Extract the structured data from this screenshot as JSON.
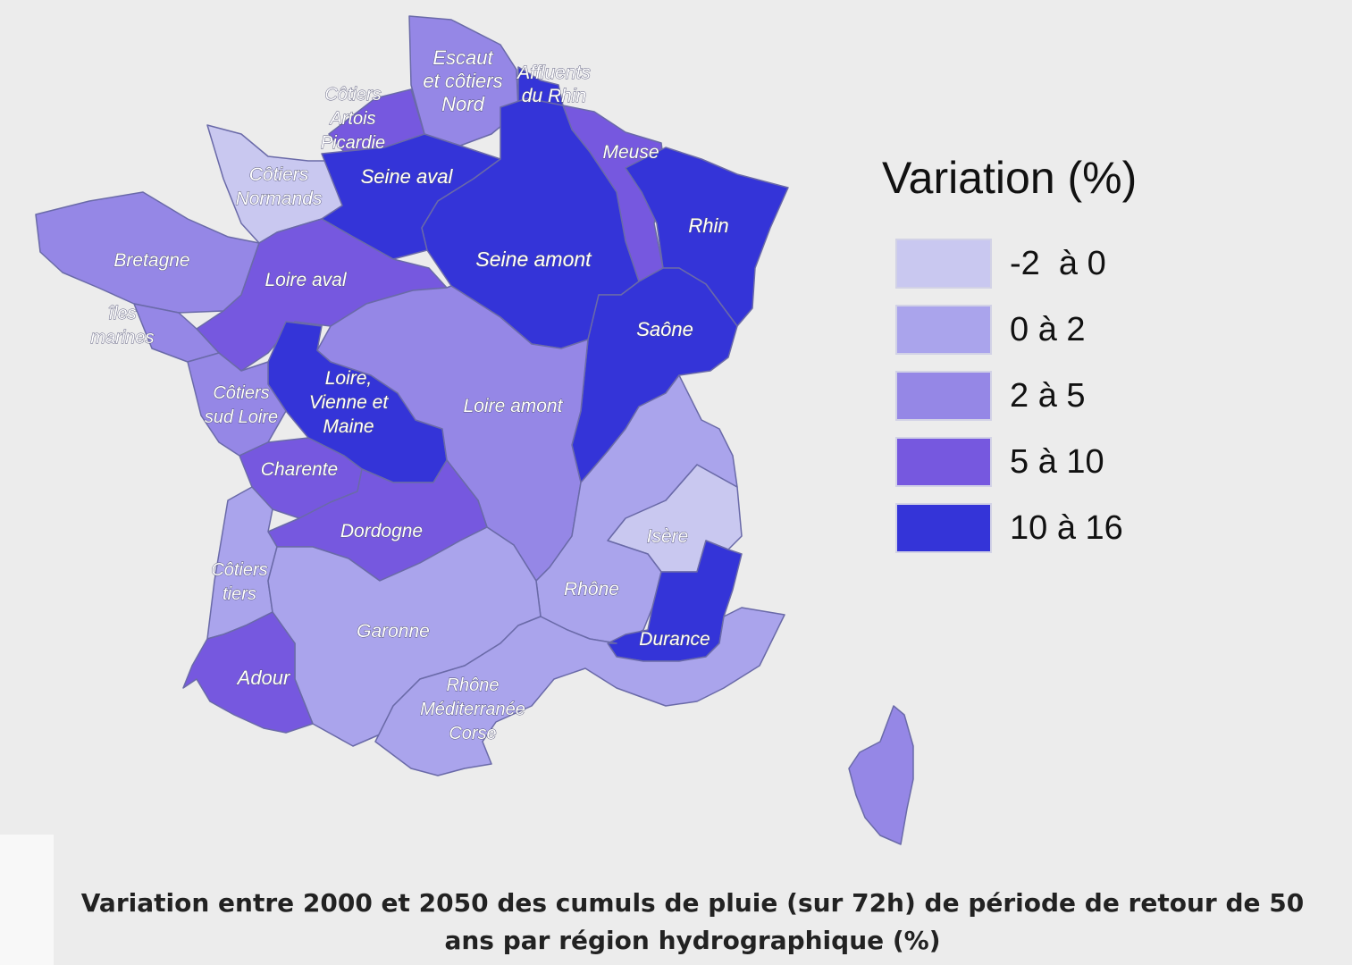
{
  "legend": {
    "title": "Variation (%)",
    "classes": [
      {
        "label": "-2  à 0",
        "color": "#c9c8f0"
      },
      {
        "label": "0 à 2",
        "color": "#aaa4ec"
      },
      {
        "label": "2 à 5",
        "color": "#9587e6"
      },
      {
        "label": "5 à 10",
        "color": "#7658df"
      },
      {
        "label": "10 à 16",
        "color": "#3434d8"
      }
    ]
  },
  "regions": [
    {
      "name": "Escaut et côtiers Nord",
      "lines": [
        "Escaut",
        "et côtiers",
        "Nord"
      ],
      "class": 2
    },
    {
      "name": "Affluents du Rhin",
      "lines": [
        "Affluents",
        "du Rhin"
      ],
      "class": 4
    },
    {
      "name": "Côtiers Artois Picardie",
      "lines": [
        "Côtiers",
        "Artois",
        "Picardie"
      ],
      "class": 3
    },
    {
      "name": "Côtiers Normands",
      "lines": [
        "Côtiers",
        "Normands"
      ],
      "class": 0
    },
    {
      "name": "Seine aval",
      "lines": [
        "Seine aval"
      ],
      "class": 4
    },
    {
      "name": "Meuse",
      "lines": [
        "Meuse"
      ],
      "class": 3
    },
    {
      "name": "Rhin",
      "lines": [
        "Rhin"
      ],
      "class": 4
    },
    {
      "name": "Seine amont",
      "lines": [
        "Seine amont"
      ],
      "class": 4
    },
    {
      "name": "Bretagne",
      "lines": [
        "Bretagne"
      ],
      "class": 2
    },
    {
      "name": "Loire aval",
      "lines": [
        "Loire aval"
      ],
      "class": 3
    },
    {
      "name": "îles marines",
      "lines": [
        "îles",
        "marines"
      ],
      "class": 2
    },
    {
      "name": "Saône",
      "lines": [
        "Saône"
      ],
      "class": 4
    },
    {
      "name": "Loire, Vienne et Maine",
      "lines": [
        "Loire,",
        "Vienne et",
        "Maine"
      ],
      "class": 4
    },
    {
      "name": "Côtiers sud Loire",
      "lines": [
        "Côtiers",
        "sud Loire"
      ],
      "class": 2
    },
    {
      "name": "Loire amont",
      "lines": [
        "Loire amont"
      ],
      "class": 2
    },
    {
      "name": "Charente",
      "lines": [
        "Charente"
      ],
      "class": 3
    },
    {
      "name": "Dordogne",
      "lines": [
        "Dordogne"
      ],
      "class": 3
    },
    {
      "name": "Isère",
      "lines": [
        "Isère"
      ],
      "class": 0
    },
    {
      "name": "Côtiers tiers",
      "lines": [
        "Côtiers",
        "tiers"
      ],
      "class": 1
    },
    {
      "name": "Rhône",
      "lines": [
        "Rhône"
      ],
      "class": 1
    },
    {
      "name": "Garonne",
      "lines": [
        "Garonne"
      ],
      "class": 1
    },
    {
      "name": "Durance",
      "lines": [
        "Durance"
      ],
      "class": 4
    },
    {
      "name": "Adour",
      "lines": [
        "Adour"
      ],
      "class": 3
    },
    {
      "name": "Rhône Méditerranée Corse",
      "lines": [
        "Rhône",
        "Méditerranée",
        "Corse"
      ],
      "class": 1
    }
  ],
  "corsica_class": 2,
  "caption": "Variation entre 2000 et 2050 des cumuls de pluie (sur 72h) de période de retour de 50 ans par région hydrographique (%)",
  "colors": {
    "background": "#ececec",
    "border": "#6a6aa8"
  }
}
